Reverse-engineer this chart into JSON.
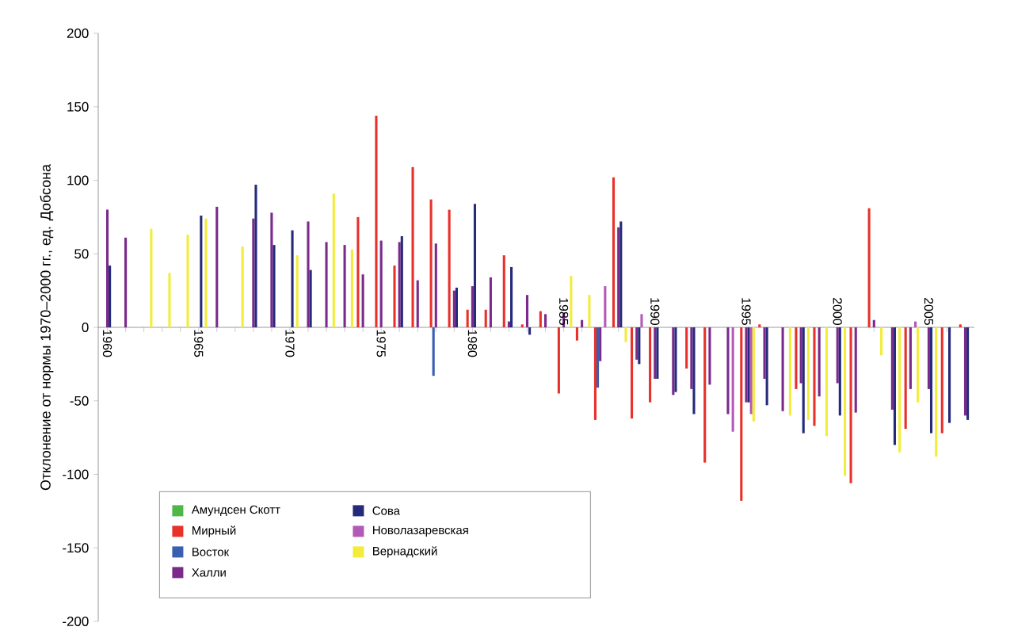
{
  "chart_data": {
    "type": "bar",
    "ylabel": "Отклонение от нормы 1970–2000 гг., ед. Добсона",
    "categories": [
      "1960",
      null,
      null,
      null,
      null,
      "1965",
      null,
      null,
      null,
      null,
      "1970",
      null,
      null,
      null,
      null,
      "1975",
      null,
      null,
      null,
      null,
      "1980",
      null,
      null,
      null,
      null,
      "1985",
      null,
      null,
      null,
      null,
      "1990",
      null,
      null,
      null,
      null,
      "1995",
      null,
      null,
      null,
      null,
      "2000",
      null,
      null,
      null,
      null,
      "2005",
      null,
      null
    ],
    "series": [
      {
        "name": "Амундсен Скотт",
        "color": "#4db848",
        "values": [
          null,
          null,
          null,
          null,
          null,
          null,
          null,
          null,
          null,
          null,
          null,
          null,
          null,
          null,
          null,
          null,
          null,
          null,
          null,
          null,
          null,
          null,
          null,
          null,
          null,
          null,
          null,
          null,
          null,
          null,
          null,
          null,
          null,
          null,
          null,
          null,
          null,
          null,
          null,
          null,
          null,
          null,
          null,
          null,
          null,
          null,
          null,
          null
        ]
      },
      {
        "name": "Мирный",
        "color": "#e8312a",
        "values": [
          null,
          null,
          null,
          null,
          null,
          null,
          null,
          null,
          null,
          null,
          null,
          null,
          null,
          null,
          75,
          144,
          42,
          109,
          87,
          80,
          12,
          12,
          49,
          2,
          11,
          -45,
          -9,
          -63,
          102,
          -62,
          -51,
          null,
          -28,
          -92,
          null,
          -118,
          2,
          null,
          -42,
          -67,
          null,
          -106,
          81,
          null,
          -69,
          null,
          -72,
          2
        ]
      },
      {
        "name": "Восток",
        "color": "#3a5fb0",
        "values": [
          null,
          null,
          null,
          null,
          null,
          null,
          null,
          null,
          null,
          null,
          null,
          null,
          null,
          null,
          null,
          null,
          null,
          null,
          -33,
          null,
          null,
          null,
          null,
          null,
          null,
          null,
          null,
          -41,
          null,
          null,
          null,
          null,
          null,
          null,
          null,
          null,
          null,
          null,
          null,
          null,
          null,
          null,
          null,
          null,
          null,
          null,
          null,
          null
        ]
      },
      {
        "name": "Халли",
        "color": "#7b2a8c",
        "values": [
          80,
          61,
          null,
          null,
          null,
          null,
          82,
          null,
          74,
          78,
          null,
          72,
          58,
          56,
          36,
          59,
          58,
          32,
          57,
          25,
          28,
          34,
          4,
          22,
          9,
          10,
          5,
          -23,
          68,
          -22,
          -35,
          -46,
          -42,
          -39,
          -59,
          -51,
          -35,
          -57,
          -38,
          -47,
          -38,
          -58,
          5,
          -56,
          -42,
          -42,
          null,
          -60
        ]
      },
      {
        "name": "Сова",
        "color": "#252a7a",
        "values": [
          42,
          null,
          null,
          null,
          null,
          76,
          null,
          null,
          97,
          56,
          66,
          39,
          null,
          null,
          null,
          null,
          62,
          null,
          null,
          27,
          84,
          null,
          41,
          -5,
          null,
          null,
          null,
          null,
          72,
          -25,
          -35,
          -44,
          -59,
          null,
          null,
          -51,
          -53,
          null,
          -72,
          null,
          -60,
          null,
          null,
          -80,
          null,
          -72,
          -65,
          -63
        ]
      },
      {
        "name": "Новолазаревская",
        "color": "#b25ab8",
        "values": [
          null,
          null,
          null,
          null,
          null,
          null,
          null,
          null,
          null,
          null,
          null,
          null,
          null,
          null,
          null,
          null,
          null,
          null,
          null,
          null,
          null,
          null,
          null,
          null,
          null,
          null,
          null,
          28,
          null,
          9,
          null,
          null,
          null,
          null,
          -71,
          -59,
          null,
          null,
          null,
          null,
          null,
          null,
          null,
          null,
          4,
          null,
          null,
          null
        ]
      },
      {
        "name": "Вернадский",
        "color": "#f2ec3a",
        "values": [
          null,
          null,
          67,
          37,
          63,
          74,
          null,
          55,
          null,
          null,
          49,
          null,
          91,
          53,
          null,
          null,
          null,
          null,
          null,
          null,
          null,
          null,
          null,
          null,
          null,
          35,
          22,
          null,
          -10,
          null,
          null,
          null,
          null,
          null,
          null,
          -64,
          null,
          -60,
          -63,
          -74,
          -101,
          null,
          -19,
          -85,
          -51,
          -88,
          null,
          null
        ]
      }
    ],
    "ylim": [
      -200,
      200
    ],
    "yticks": [
      -200,
      -150,
      -100,
      -50,
      0,
      50,
      100,
      150,
      200
    ],
    "grid": false,
    "legend": "bottom left"
  }
}
